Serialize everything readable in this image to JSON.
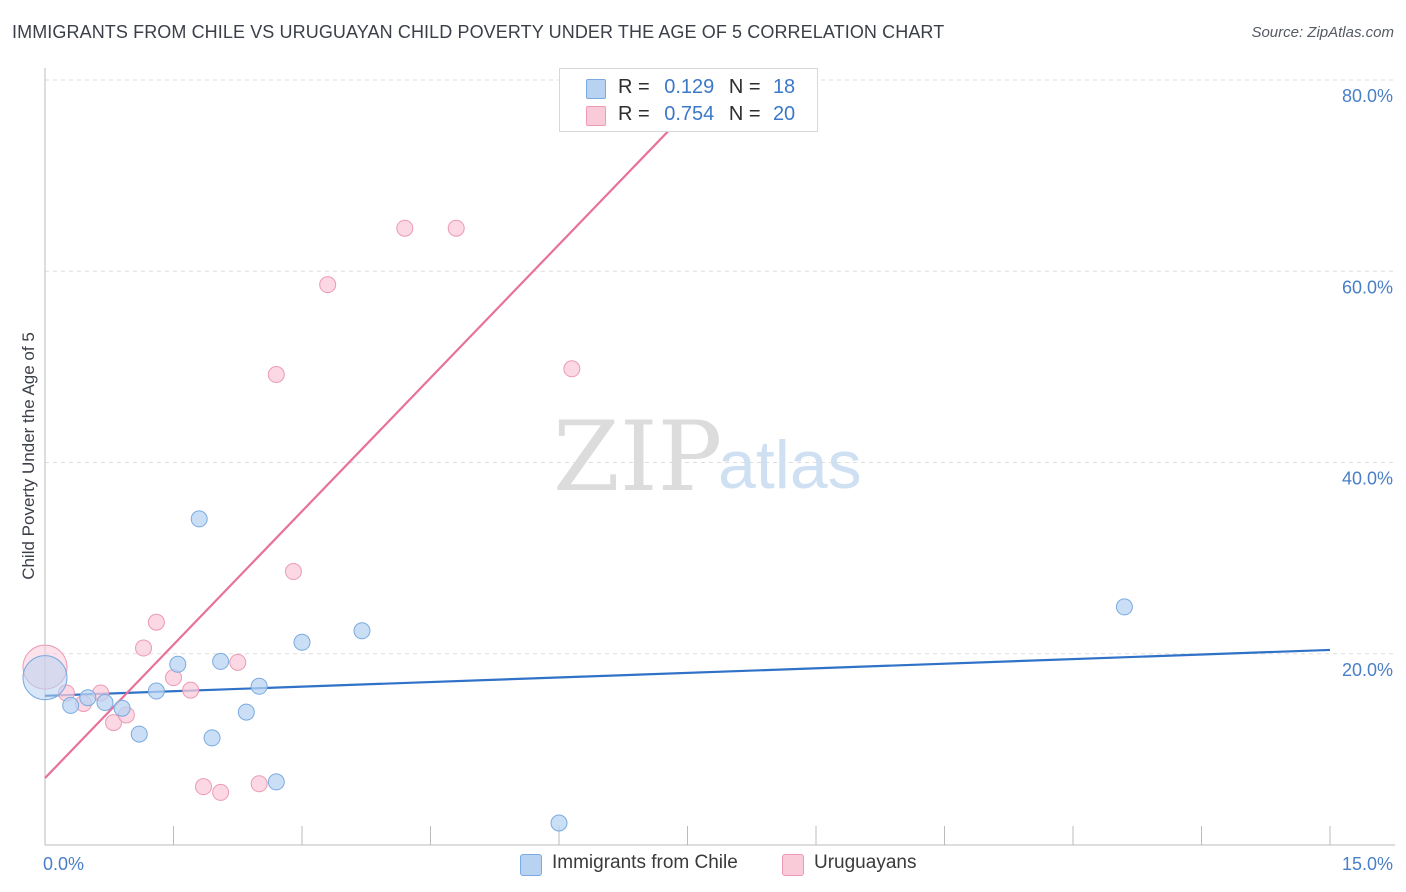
{
  "header": {
    "title": "IMMIGRANTS FROM CHILE VS URUGUAYAN CHILD POVERTY UNDER THE AGE OF 5 CORRELATION CHART",
    "source": "Source: ZipAtlas.com"
  },
  "watermark": {
    "zip": "ZIP",
    "atlas": "atlas"
  },
  "legend": {
    "r_label": "R =",
    "n_label": "N =",
    "rows": [
      {
        "r": "0.129",
        "n": "18"
      },
      {
        "r": "0.754",
        "n": "20"
      }
    ]
  },
  "bottom_legend": [
    {
      "label": "Immigrants from Chile"
    },
    {
      "label": "Uruguayans"
    }
  ],
  "colors": {
    "blue_fill": "#b8d3f2",
    "blue_stroke": "#7aaae0",
    "blue_line": "#2f72c8",
    "pink_fill": "#f9cbd9",
    "pink_stroke": "#ec9ab5",
    "pink_line": "#e8719a",
    "tick_text": "#4a7fc8",
    "grid": "#dddddd"
  },
  "chart_data": {
    "type": "scatter",
    "title": "IMMIGRANTS FROM CHILE VS URUGUAYAN CHILD POVERTY UNDER THE AGE OF 5 CORRELATION CHART",
    "xlabel": "",
    "ylabel": "Child Poverty Under the Age of 5",
    "xlim": [
      0,
      15
    ],
    "ylim": [
      0,
      80
    ],
    "x_tick_labels": [
      {
        "value": 0,
        "label": "0.0%"
      },
      {
        "value": 15,
        "label": "15.0%"
      }
    ],
    "y_tick_labels": [
      {
        "value": 20,
        "label": "20.0%"
      },
      {
        "value": 40,
        "label": "40.0%"
      },
      {
        "value": 60,
        "label": "60.0%"
      },
      {
        "value": 80,
        "label": "80.0%"
      }
    ],
    "series": [
      {
        "name": "Immigrants from Chile",
        "color": "blue",
        "points": [
          {
            "x": 0.0,
            "y": 17.5,
            "big": true
          },
          {
            "x": 0.3,
            "y": 14.6
          },
          {
            "x": 0.5,
            "y": 15.4
          },
          {
            "x": 0.7,
            "y": 14.9
          },
          {
            "x": 0.9,
            "y": 14.3
          },
          {
            "x": 1.1,
            "y": 11.6
          },
          {
            "x": 1.3,
            "y": 16.1
          },
          {
            "x": 1.55,
            "y": 18.9
          },
          {
            "x": 1.8,
            "y": 34.1
          },
          {
            "x": 1.95,
            "y": 11.2
          },
          {
            "x": 2.05,
            "y": 19.2
          },
          {
            "x": 2.35,
            "y": 13.9
          },
          {
            "x": 2.5,
            "y": 16.6
          },
          {
            "x": 2.7,
            "y": 6.6
          },
          {
            "x": 3.0,
            "y": 21.2
          },
          {
            "x": 3.7,
            "y": 22.4
          },
          {
            "x": 6.0,
            "y": 2.3
          },
          {
            "x": 12.6,
            "y": 24.9
          }
        ],
        "trendline": {
          "x1": 0,
          "y1": 15.6,
          "x2": 15,
          "y2": 20.4
        }
      },
      {
        "name": "Uruguayans",
        "color": "pink",
        "points": [
          {
            "x": 0.0,
            "y": 18.6,
            "big": true
          },
          {
            "x": 0.25,
            "y": 15.9
          },
          {
            "x": 0.45,
            "y": 14.8
          },
          {
            "x": 0.65,
            "y": 15.9
          },
          {
            "x": 0.8,
            "y": 12.8
          },
          {
            "x": 0.95,
            "y": 13.6
          },
          {
            "x": 1.15,
            "y": 20.6
          },
          {
            "x": 1.3,
            "y": 23.3
          },
          {
            "x": 1.5,
            "y": 17.5
          },
          {
            "x": 1.7,
            "y": 16.2
          },
          {
            "x": 1.85,
            "y": 6.1
          },
          {
            "x": 2.05,
            "y": 5.5
          },
          {
            "x": 2.25,
            "y": 19.1
          },
          {
            "x": 2.5,
            "y": 6.4
          },
          {
            "x": 2.7,
            "y": 49.2
          },
          {
            "x": 2.9,
            "y": 28.6
          },
          {
            "x": 3.3,
            "y": 58.6
          },
          {
            "x": 4.2,
            "y": 64.5
          },
          {
            "x": 4.8,
            "y": 64.5
          },
          {
            "x": 6.15,
            "y": 49.8
          }
        ],
        "trendline": {
          "x1": 0,
          "y1": 7.0,
          "x2": 7.85,
          "y2": 80.0
        }
      }
    ]
  }
}
